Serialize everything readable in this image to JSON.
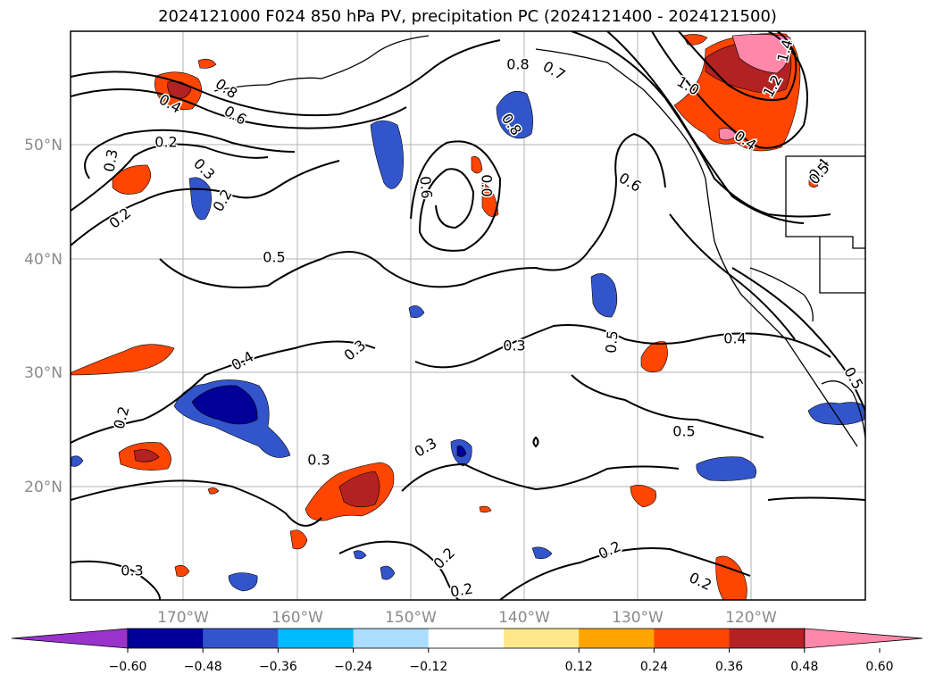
{
  "title": "2024121000 F024 850 hPa PV, precipitation PC (2024121400 - 2024121500)",
  "map": {
    "lon_ticks": [
      "170°W",
      "160°W",
      "150°W",
      "140°W",
      "130°W",
      "120°W"
    ],
    "lat_ticks": [
      "50°N",
      "40°N",
      "30°N",
      "20°N"
    ],
    "grid": true
  },
  "contour_labels": [
    "0.8",
    "0.7",
    "0.8",
    "1.0",
    "1.2",
    "1.4",
    "0.4",
    "0.6",
    "0.8",
    "0.4",
    "0.2",
    "0.3",
    "0.3",
    "0.2",
    "0.2",
    "0.6",
    "0.6",
    "0.0",
    "0.4",
    "0.5",
    "0.3",
    "0.3",
    "0.4",
    "0.5",
    "0.5",
    "0.4",
    "0.5",
    "0.2",
    "0.3",
    "0.3",
    "0.2",
    "0.2",
    "0.2",
    "0.3",
    "0.2",
    "0.5"
  ],
  "colorbar": {
    "labels": [
      "−0.60",
      "−0.48",
      "−0.36",
      "−0.24",
      "−0.12",
      "0.12",
      "0.24",
      "0.36",
      "0.48",
      "0.60"
    ],
    "colors": [
      "#9933cc",
      "#000099",
      "#3355cc",
      "#00bbff",
      "#aaddff",
      "#ffffff",
      "#ffe88a",
      "#ffa500",
      "#ff4500",
      "#b22222",
      "#ff88aa"
    ]
  }
}
